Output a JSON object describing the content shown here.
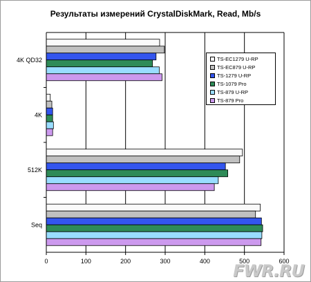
{
  "chart_data": {
    "type": "bar",
    "orientation": "horizontal",
    "title": "Результаты измерений CrystalDiskMark, Read, Mb/s",
    "categories": [
      "4K QD32",
      "4K",
      "512K",
      "Seq"
    ],
    "series": [
      {
        "name": "TS-EC1279 U-RP",
        "color": "#fafafa",
        "values": [
          286,
          10,
          495,
          540
        ]
      },
      {
        "name": "TS-EC879 U-RP",
        "color": "#c0c0c0",
        "values": [
          298,
          14,
          488,
          528
        ]
      },
      {
        "name": "TS-1279 U-RP",
        "color": "#3355ee",
        "values": [
          277,
          16,
          452,
          543
        ]
      },
      {
        "name": "TS-1079 Pro",
        "color": "#2e8b57",
        "values": [
          268,
          16,
          458,
          546
        ]
      },
      {
        "name": "TS-879 U-RP",
        "color": "#99ddff",
        "values": [
          285,
          18,
          434,
          544
        ]
      },
      {
        "name": "TS-879 Pro",
        "color": "#cc99ee",
        "values": [
          292,
          16,
          424,
          542
        ]
      }
    ],
    "xlim": [
      0,
      600
    ],
    "xticks": [
      "0",
      "100",
      "200",
      "300",
      "400",
      "500",
      "600"
    ],
    "grid": true,
    "legend_position": "top-right"
  },
  "watermark": "FWR.RU"
}
